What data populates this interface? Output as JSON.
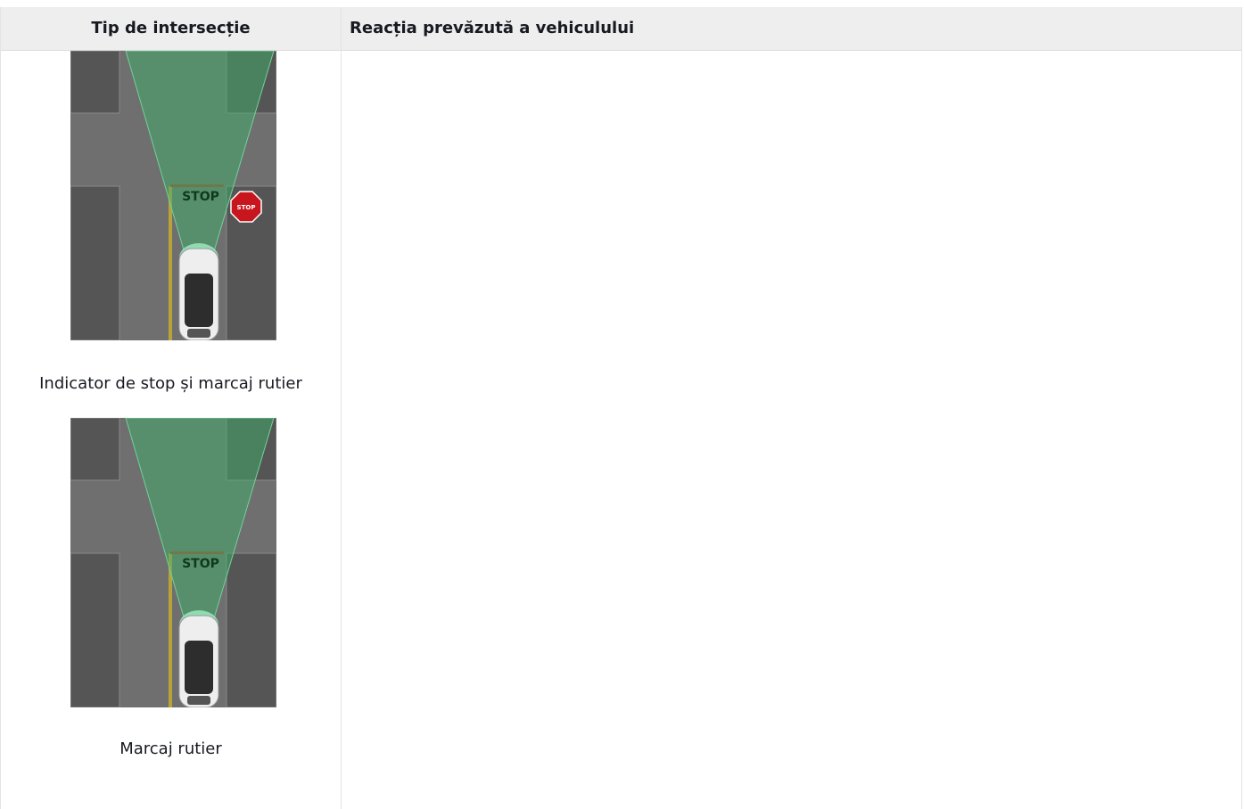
{
  "table": {
    "header": [
      "Tip de intersecție",
      "Reacția prevăzută a vehiculului"
    ],
    "rows": [
      {
        "items": [
          {
            "road_marking": "STOP",
            "sign": "STOP",
            "caption": "Indicator de stop și marcaj rutier"
          },
          {
            "road_marking": "STOP",
            "caption": "Marcaj rutier"
          }
        ]
      }
    ]
  }
}
